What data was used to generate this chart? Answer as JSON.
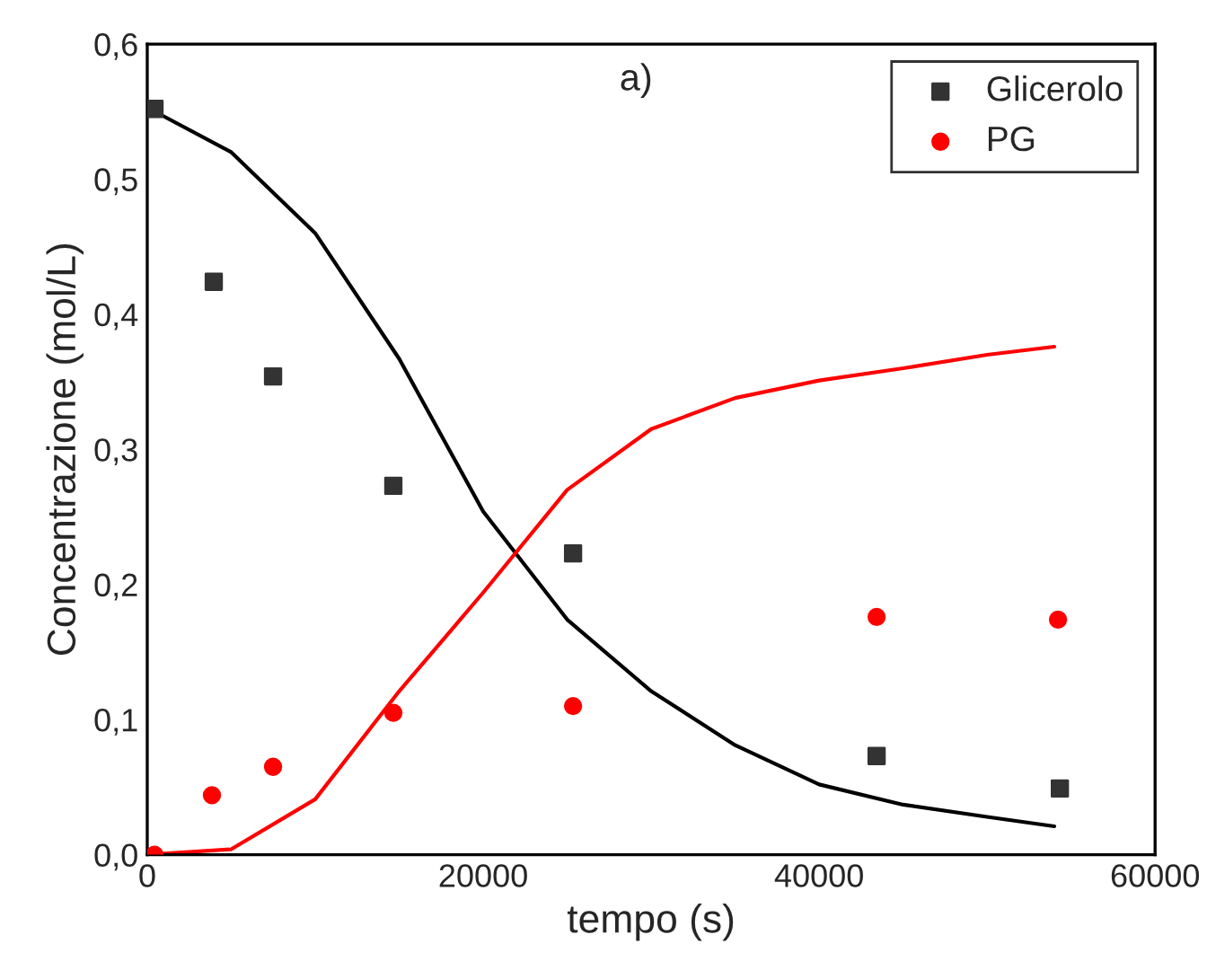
{
  "chart_data": {
    "type": "scatter",
    "xlabel": "tempo (s)",
    "ylabel": "Concentrazione (mol/L)",
    "xlim": [
      0,
      60000
    ],
    "ylim": [
      0,
      0.6
    ],
    "xticks": [
      0,
      20000,
      40000,
      60000
    ],
    "yticks": [
      {
        "value": 0,
        "label": "0,0"
      },
      {
        "value": 0.1,
        "label": "0,1"
      },
      {
        "value": 0.2,
        "label": "0,2"
      },
      {
        "value": 0.3,
        "label": "0,3"
      },
      {
        "value": 0.4,
        "label": "0,4"
      },
      {
        "value": 0.5,
        "label": "0,5"
      },
      {
        "value": 0.6,
        "label": "0,6"
      }
    ],
    "legend": "top right",
    "grid": false,
    "annotations": [
      "a)"
    ],
    "series": [
      {
        "name": "Glicerolo",
        "marker": "square",
        "color": "#333333",
        "x": [
          430,
          3960,
          7490,
          14650,
          25350,
          43420,
          54330
        ],
        "values": [
          0.552,
          0.424,
          0.354,
          0.273,
          0.223,
          0.073,
          0.049
        ]
      },
      {
        "name": "PG",
        "marker": "circle",
        "color": "#ff0000",
        "x": [
          430,
          3850,
          7490,
          14650,
          25350,
          43420,
          54220
        ],
        "values": [
          0.0,
          0.044,
          0.065,
          0.105,
          0.11,
          0.176,
          0.174
        ]
      },
      {
        "type": "line",
        "color": "#000000",
        "marker": "none",
        "x": [
          0,
          5000,
          10000,
          15000,
          20000,
          25000,
          30000,
          35000,
          40000,
          45000,
          50000,
          54000
        ],
        "values": [
          0.553,
          0.52,
          0.46,
          0.367,
          0.254,
          0.174,
          0.121,
          0.081,
          0.052,
          0.037,
          0.028,
          0.021
        ]
      },
      {
        "type": "line",
        "color": "#ff0000",
        "marker": "none",
        "x": [
          0,
          5000,
          10000,
          15000,
          20000,
          25000,
          30000,
          35000,
          40000,
          45000,
          50000,
          54000
        ],
        "values": [
          0.0,
          0.004,
          0.041,
          0.121,
          0.194,
          0.27,
          0.315,
          0.338,
          0.351,
          0.36,
          0.37,
          0.376
        ]
      }
    ]
  }
}
